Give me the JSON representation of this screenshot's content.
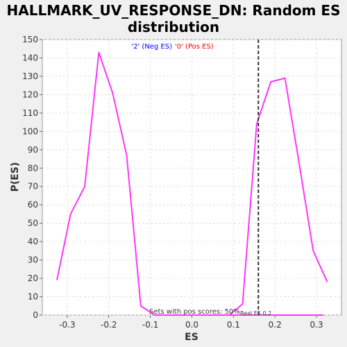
{
  "chart_data": {
    "type": "line",
    "title_line1": "HALLMARK_UV_RESPONSE_DN: Random ES",
    "title_line2": "distribution",
    "xlabel": "ES",
    "ylabel": "P(ES)",
    "xlim": [
      -0.36,
      0.36
    ],
    "ylim": [
      0,
      150
    ],
    "x_ticks": [
      -0.3,
      -0.2,
      -0.1,
      0.0,
      0.1,
      0.2,
      0.3
    ],
    "x_tick_labels": [
      "-0.3",
      "-0.2",
      "-0.1",
      "0.0",
      "0.1",
      "0.2",
      "0.3"
    ],
    "y_ticks": [
      0,
      10,
      20,
      30,
      40,
      50,
      60,
      70,
      80,
      90,
      100,
      110,
      120,
      130,
      140,
      150
    ],
    "grid": true,
    "legend": [
      {
        "label": "'2' (Neg ES)",
        "color": "#0000ff"
      },
      {
        "label": "'0' (Pos ES)",
        "color": "#ff0000"
      }
    ],
    "legend_placement": "top-center",
    "series": [
      {
        "color": "#ff33ff",
        "x": [
          -0.325,
          -0.292,
          -0.258,
          -0.224,
          -0.191,
          -0.157,
          -0.123,
          -0.09,
          -0.056,
          -0.022,
          0.011,
          0.045,
          0.079,
          0.113,
          0.147,
          0.18,
          0.214,
          0.248,
          0.282,
          0.316
        ],
        "y": [
          19,
          55,
          70,
          143,
          121,
          87,
          5,
          0,
          0,
          0,
          0,
          0,
          0,
          0,
          0,
          0,
          0,
          0,
          0,
          0
        ]
      },
      {
        "color": "#ff33ff",
        "x": [
          0.09,
          0.122,
          0.156,
          0.19,
          0.224,
          0.258,
          0.292,
          0.326
        ],
        "y": [
          0,
          6,
          104,
          127,
          129,
          83,
          35,
          18
        ]
      }
    ],
    "real_es": 0.16,
    "annotations": {
      "pos_scores": "Sets with pos scores: 50%",
      "real_es": "Real ES 0.2"
    }
  }
}
